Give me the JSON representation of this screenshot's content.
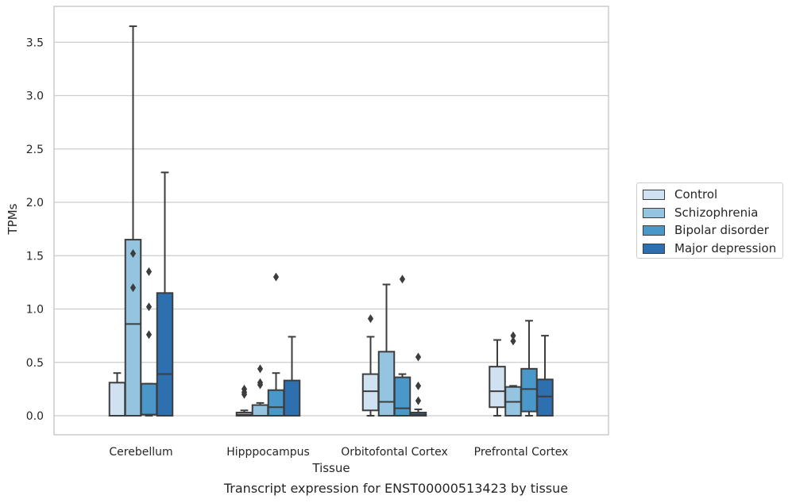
{
  "chart_data": {
    "type": "boxplot",
    "title": "",
    "caption": "Transcript expression for ENST00000513423 by tissue",
    "xlabel": "Tissue",
    "ylabel": "TPMs",
    "ylim": [
      -0.18,
      3.85
    ],
    "yticks": [
      0.0,
      0.5,
      1.0,
      1.5,
      2.0,
      2.5,
      3.0,
      3.5
    ],
    "ytick_labels": [
      "0.0",
      "0.5",
      "1.0",
      "1.5",
      "2.0",
      "2.5",
      "3.0",
      "3.5"
    ],
    "categories": [
      "Cerebellum",
      "Hipppocampus",
      "Orbitofontal Cortex",
      "Prefrontal Cortex"
    ],
    "grid": "horizontal",
    "legend_position": "right",
    "series": [
      {
        "name": "Control",
        "color": "#d0e1f2",
        "boxes": [
          {
            "whisker_low": 0.0,
            "q1": 0.0,
            "median": 0.0,
            "q3": 0.31,
            "whisker_high": 0.4,
            "outliers": []
          },
          {
            "whisker_low": 0.0,
            "q1": 0.0,
            "median": 0.01,
            "q3": 0.03,
            "whisker_high": 0.05,
            "outliers": [
              0.2,
              0.22,
              0.25
            ]
          },
          {
            "whisker_low": 0.0,
            "q1": 0.05,
            "median": 0.23,
            "q3": 0.39,
            "whisker_high": 0.74,
            "outliers": [
              0.91
            ]
          },
          {
            "whisker_low": 0.0,
            "q1": 0.08,
            "median": 0.23,
            "q3": 0.46,
            "whisker_high": 0.71,
            "outliers": []
          }
        ]
      },
      {
        "name": "Schizophrenia",
        "color": "#94c4df",
        "boxes": [
          {
            "whisker_low": 0.0,
            "q1": 0.0,
            "median": 0.86,
            "q3": 1.65,
            "whisker_high": 3.65,
            "outliers": [
              1.2,
              1.52
            ]
          },
          {
            "whisker_low": 0.0,
            "q1": 0.0,
            "median": 0.0,
            "q3": 0.1,
            "whisker_high": 0.12,
            "outliers": [
              0.29,
              0.31,
              0.44
            ]
          },
          {
            "whisker_low": 0.0,
            "q1": 0.0,
            "median": 0.13,
            "q3": 0.6,
            "whisker_high": 1.23,
            "outliers": []
          },
          {
            "whisker_low": 0.0,
            "q1": 0.0,
            "median": 0.13,
            "q3": 0.27,
            "whisker_high": 0.28,
            "outliers": [
              0.7,
              0.75
            ]
          }
        ]
      },
      {
        "name": "Bipolar disorder",
        "color": "#4a98c9",
        "boxes": [
          {
            "whisker_low": 0.0,
            "q1": 0.01,
            "median": 0.01,
            "q3": 0.3,
            "whisker_high": 0.3,
            "outliers": [
              0.76,
              1.02,
              1.35
            ]
          },
          {
            "whisker_low": 0.0,
            "q1": 0.0,
            "median": 0.08,
            "q3": 0.24,
            "whisker_high": 0.4,
            "outliers": [
              1.3
            ]
          },
          {
            "whisker_low": 0.0,
            "q1": 0.0,
            "median": 0.07,
            "q3": 0.36,
            "whisker_high": 0.39,
            "outliers": [
              1.28
            ]
          },
          {
            "whisker_low": 0.0,
            "q1": 0.04,
            "median": 0.25,
            "q3": 0.44,
            "whisker_high": 0.89,
            "outliers": []
          }
        ]
      },
      {
        "name": "Major depression",
        "color": "#2e6fb0",
        "boxes": [
          {
            "whisker_low": 0.0,
            "q1": 0.0,
            "median": 0.39,
            "q3": 1.15,
            "whisker_high": 2.28,
            "outliers": []
          },
          {
            "whisker_low": 0.0,
            "q1": 0.0,
            "median": 0.0,
            "q3": 0.33,
            "whisker_high": 0.74,
            "outliers": []
          },
          {
            "whisker_low": 0.0,
            "q1": 0.0,
            "median": 0.01,
            "q3": 0.03,
            "whisker_high": 0.06,
            "outliers": [
              0.14,
              0.28,
              0.55
            ]
          },
          {
            "whisker_low": 0.0,
            "q1": 0.0,
            "median": 0.18,
            "q3": 0.34,
            "whisker_high": 0.75,
            "outliers": []
          }
        ]
      }
    ]
  }
}
